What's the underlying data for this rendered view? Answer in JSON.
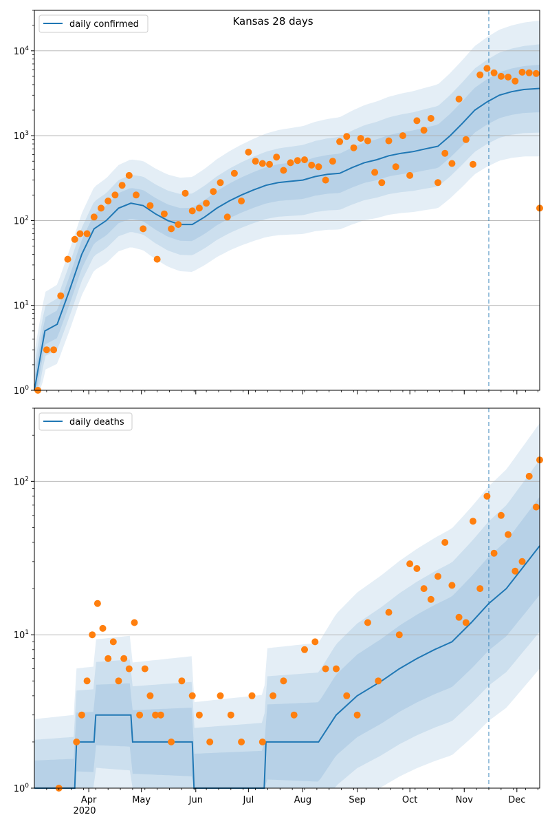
{
  "chart_data": [
    {
      "type": "line",
      "title": "Kansas 28 days",
      "yscale": "log",
      "ylim": [
        1,
        30000
      ],
      "xlim": [
        "2020-03-01",
        "2020-12-14"
      ],
      "y_ticks": [
        {
          "value": 1,
          "label": "10^0"
        },
        {
          "value": 10,
          "label": "10^1"
        },
        {
          "value": 100,
          "label": "10^2"
        },
        {
          "value": 1000,
          "label": "10^3"
        },
        {
          "value": 10000,
          "label": "10^4"
        }
      ],
      "grid": "horizontal",
      "legend": "top-left",
      "forecast_start": "2020-11-15",
      "series": [
        {
          "name": "daily confirmed",
          "kind": "line",
          "color": "#1f77b4",
          "x": [
            "2020-03-01",
            "2020-03-07",
            "2020-03-14",
            "2020-03-21",
            "2020-03-28",
            "2020-04-04",
            "2020-04-11",
            "2020-04-18",
            "2020-04-25",
            "2020-05-02",
            "2020-05-09",
            "2020-05-16",
            "2020-05-23",
            "2020-05-30",
            "2020-06-06",
            "2020-06-13",
            "2020-06-20",
            "2020-06-27",
            "2020-07-04",
            "2020-07-11",
            "2020-07-18",
            "2020-07-25",
            "2020-08-01",
            "2020-08-08",
            "2020-08-15",
            "2020-08-22",
            "2020-08-29",
            "2020-09-05",
            "2020-09-12",
            "2020-09-19",
            "2020-09-26",
            "2020-10-03",
            "2020-10-10",
            "2020-10-17",
            "2020-10-24",
            "2020-10-31",
            "2020-11-07",
            "2020-11-14",
            "2020-11-21",
            "2020-11-28",
            "2020-12-05",
            "2020-12-14"
          ],
          "y": [
            1,
            5,
            6,
            15,
            40,
            80,
            100,
            140,
            160,
            150,
            120,
            100,
            90,
            90,
            110,
            140,
            170,
            200,
            230,
            260,
            280,
            290,
            300,
            330,
            350,
            360,
            420,
            480,
            520,
            580,
            620,
            650,
            700,
            750,
            1000,
            1400,
            2000,
            2500,
            3000,
            3300,
            3500,
            3600
          ]
        },
        {
          "name": "",
          "kind": "points",
          "color": "#ff7f0e",
          "x": [
            "2020-03-03",
            "2020-03-08",
            "2020-03-12",
            "2020-03-16",
            "2020-03-20",
            "2020-03-24",
            "2020-03-27",
            "2020-03-31",
            "2020-04-04",
            "2020-04-08",
            "2020-04-12",
            "2020-04-16",
            "2020-04-20",
            "2020-04-24",
            "2020-04-28",
            "2020-05-02",
            "2020-05-06",
            "2020-05-10",
            "2020-05-14",
            "2020-05-18",
            "2020-05-22",
            "2020-05-26",
            "2020-05-30",
            "2020-06-03",
            "2020-06-07",
            "2020-06-11",
            "2020-06-15",
            "2020-06-19",
            "2020-06-23",
            "2020-06-27",
            "2020-07-01",
            "2020-07-05",
            "2020-07-09",
            "2020-07-13",
            "2020-07-17",
            "2020-07-21",
            "2020-07-25",
            "2020-07-29",
            "2020-08-02",
            "2020-08-06",
            "2020-08-10",
            "2020-08-14",
            "2020-08-18",
            "2020-08-22",
            "2020-08-26",
            "2020-08-30",
            "2020-09-03",
            "2020-09-07",
            "2020-09-11",
            "2020-09-15",
            "2020-09-19",
            "2020-09-23",
            "2020-09-27",
            "2020-10-01",
            "2020-10-05",
            "2020-10-09",
            "2020-10-13",
            "2020-10-17",
            "2020-10-21",
            "2020-10-25",
            "2020-10-29",
            "2020-11-02",
            "2020-11-06",
            "2020-11-10",
            "2020-11-14",
            "2020-11-18",
            "2020-11-22",
            "2020-11-26",
            "2020-11-30",
            "2020-12-04",
            "2020-12-08",
            "2020-12-12",
            "2020-12-14"
          ],
          "y": [
            1,
            3,
            3,
            13,
            35,
            60,
            70,
            70,
            110,
            140,
            170,
            200,
            260,
            340,
            200,
            80,
            150,
            35,
            120,
            80,
            90,
            210,
            130,
            140,
            160,
            220,
            280,
            110,
            360,
            170,
            640,
            500,
            470,
            460,
            560,
            390,
            480,
            510,
            520,
            450,
            430,
            300,
            500,
            850,
            980,
            720,
            930,
            870,
            370,
            280,
            870,
            430,
            1000,
            340,
            1500,
            1160,
            1600,
            280,
            620,
            470,
            2700,
            900,
            460,
            5200,
            6200,
            5500,
            5000,
            4900,
            4400,
            5600,
            5500,
            5400,
            140
          ]
        }
      ]
    },
    {
      "type": "line",
      "title": "",
      "yscale": "log",
      "ylim": [
        1,
        300
      ],
      "xlim": [
        "2020-03-01",
        "2020-12-14"
      ],
      "y_ticks": [
        {
          "value": 1,
          "label": "10^0"
        },
        {
          "value": 10,
          "label": "10^1"
        },
        {
          "value": 100,
          "label": "10^2"
        }
      ],
      "x_ticks": [
        {
          "date": "2020-04-01",
          "label": "Apr"
        },
        {
          "date": "2020-05-01",
          "label": "May"
        },
        {
          "date": "2020-06-01",
          "label": "Jun"
        },
        {
          "date": "2020-07-01",
          "label": "Jul"
        },
        {
          "date": "2020-08-01",
          "label": "Aug"
        },
        {
          "date": "2020-09-01",
          "label": "Sep"
        },
        {
          "date": "2020-10-01",
          "label": "Oct"
        },
        {
          "date": "2020-11-01",
          "label": "Nov"
        },
        {
          "date": "2020-12-01",
          "label": "Dec"
        }
      ],
      "x_year_label": "2020",
      "grid": "horizontal",
      "legend": "top-left",
      "forecast_start": "2020-11-15",
      "series": [
        {
          "name": "daily deaths",
          "kind": "line",
          "color": "#1f77b4",
          "x": [
            "2020-03-01",
            "2020-03-15",
            "2020-03-24",
            "2020-03-25",
            "2020-04-04",
            "2020-04-05",
            "2020-04-25",
            "2020-04-26",
            "2020-05-30",
            "2020-05-31",
            "2020-06-20",
            "2020-07-10",
            "2020-07-11",
            "2020-07-25",
            "2020-08-10",
            "2020-08-20",
            "2020-09-01",
            "2020-09-15",
            "2020-09-25",
            "2020-10-05",
            "2020-10-15",
            "2020-10-25",
            "2020-11-05",
            "2020-11-15",
            "2020-11-25",
            "2020-12-05",
            "2020-12-14"
          ],
          "y": [
            1,
            1,
            1,
            2,
            2,
            3,
            3,
            2,
            2,
            1,
            1,
            1,
            2,
            2,
            2,
            3,
            4,
            5,
            6,
            7,
            8,
            9,
            12,
            16,
            20,
            28,
            38
          ]
        },
        {
          "name": "",
          "kind": "points",
          "color": "#ff7f0e",
          "x": [
            "2020-03-15",
            "2020-03-25",
            "2020-03-28",
            "2020-03-31",
            "2020-04-03",
            "2020-04-06",
            "2020-04-09",
            "2020-04-12",
            "2020-04-15",
            "2020-04-18",
            "2020-04-21",
            "2020-04-24",
            "2020-04-27",
            "2020-04-30",
            "2020-05-03",
            "2020-05-06",
            "2020-05-09",
            "2020-05-12",
            "2020-05-18",
            "2020-05-24",
            "2020-05-30",
            "2020-06-03",
            "2020-06-09",
            "2020-06-15",
            "2020-06-21",
            "2020-06-27",
            "2020-07-03",
            "2020-07-09",
            "2020-07-15",
            "2020-07-21",
            "2020-07-27",
            "2020-08-02",
            "2020-08-08",
            "2020-08-14",
            "2020-08-20",
            "2020-08-26",
            "2020-09-01",
            "2020-09-07",
            "2020-09-13",
            "2020-09-19",
            "2020-09-25",
            "2020-10-01",
            "2020-10-05",
            "2020-10-09",
            "2020-10-13",
            "2020-10-17",
            "2020-10-21",
            "2020-10-25",
            "2020-10-29",
            "2020-11-02",
            "2020-11-06",
            "2020-11-10",
            "2020-11-14",
            "2020-11-18",
            "2020-11-22",
            "2020-11-26",
            "2020-11-30",
            "2020-12-04",
            "2020-12-08",
            "2020-12-12",
            "2020-12-14"
          ],
          "y": [
            1,
            2,
            3,
            5,
            10,
            16,
            11,
            7,
            9,
            5,
            7,
            6,
            12,
            3,
            6,
            4,
            3,
            3,
            2,
            5,
            4,
            3,
            2,
            4,
            3,
            2,
            4,
            2,
            4,
            5,
            3,
            8,
            9,
            6,
            6,
            4,
            3,
            12,
            5,
            14,
            10,
            29,
            27,
            20,
            17,
            24,
            40,
            21,
            13,
            12,
            55,
            20,
            80,
            34,
            60,
            45,
            26,
            30,
            108,
            68,
            138
          ]
        }
      ]
    }
  ],
  "legends": [
    "daily confirmed",
    "daily deaths"
  ]
}
